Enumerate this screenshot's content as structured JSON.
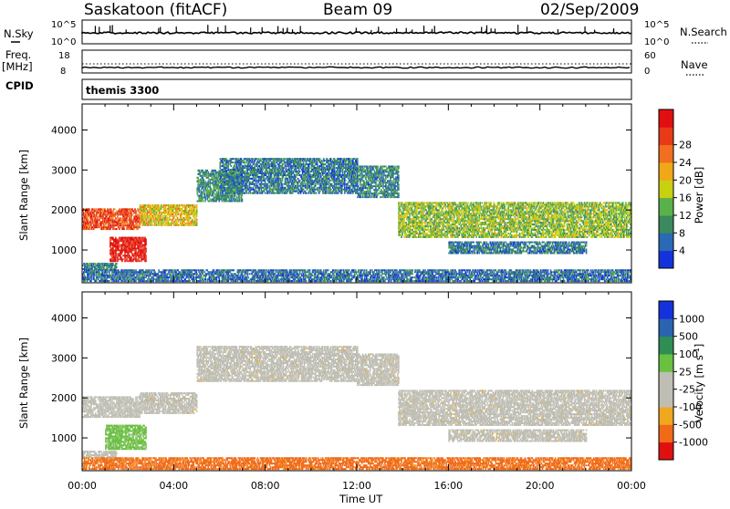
{
  "header": {
    "station": "Saskatoon (fitACF)",
    "beam": "Beam 09",
    "date": "02/Sep/2009"
  },
  "status_panel": {
    "left_top_label": "N.Sky",
    "left_top_ticks": [
      "10^5",
      "10^0"
    ],
    "right_top_label": "N.Search",
    "right_top_ticks": [
      "10^5",
      "10^0"
    ],
    "freq_label_1": "Freq.",
    "freq_label_2": "[MHz]",
    "freq_ticks": [
      "18",
      "8"
    ],
    "nave_label": "Nave",
    "nave_ticks": [
      "60",
      "0"
    ],
    "cpid_label": "CPID",
    "cpid_value": "themis 3300"
  },
  "colors": {
    "power_scale": [
      "#1432dc",
      "#2a6ab4",
      "#3a8a5e",
      "#5ab04a",
      "#c8d010",
      "#f0a818",
      "#f07020",
      "#e83a18",
      "#e01010"
    ],
    "velocity_scale": [
      "#e01010",
      "#f06a18",
      "#f0a820",
      "#bebeb4",
      "#bebeb4",
      "#6ac040",
      "#2e8e54",
      "#2a64b0",
      "#1432dc"
    ],
    "ground_scatter": "#bebeb4"
  },
  "chart_data": [
    {
      "type": "heatmap",
      "name": "power",
      "ylabel": "Slant Range [km]",
      "xlabel": "Time UT",
      "x_ticks": [
        "00:00",
        "04:00",
        "08:00",
        "12:00",
        "16:00",
        "20:00",
        "00:00"
      ],
      "xlim_hours": [
        0,
        24
      ],
      "y_ticks": [
        1000,
        2000,
        3000,
        4000
      ],
      "ylim": [
        180,
        4650
      ],
      "colorbar": {
        "label": "Power [dB]",
        "ticks": [
          4,
          8,
          12,
          16,
          20,
          24,
          28
        ],
        "range": [
          0,
          32
        ]
      },
      "echo_regions": [
        {
          "t": [
            0.0,
            2.5
          ],
          "range": [
            1500,
            2000
          ],
          "value": 26
        },
        {
          "t": [
            1.2,
            2.8
          ],
          "range": [
            700,
            1300
          ],
          "value": 30
        },
        {
          "t": [
            0.0,
            1.5
          ],
          "range": [
            500,
            650
          ],
          "value": 8
        },
        {
          "t": [
            2.5,
            5.0
          ],
          "range": [
            1600,
            2100
          ],
          "value": 18
        },
        {
          "t": [
            5.0,
            7.0
          ],
          "range": [
            2200,
            3000
          ],
          "value": 9
        },
        {
          "t": [
            6.0,
            12.0
          ],
          "range": [
            2400,
            3300
          ],
          "value": 7
        },
        {
          "t": [
            12.0,
            13.8
          ],
          "range": [
            2300,
            3100
          ],
          "value": 8
        },
        {
          "t": [
            13.8,
            24.0
          ],
          "range": [
            1300,
            2200
          ],
          "value": 14
        },
        {
          "t": [
            16.0,
            22.0
          ],
          "range": [
            900,
            1200
          ],
          "value": 7
        },
        {
          "t": [
            0.0,
            24.0
          ],
          "range": [
            200,
            500
          ],
          "value": 6
        }
      ]
    },
    {
      "type": "heatmap",
      "name": "velocity",
      "ylabel": "Slant Range [km]",
      "xlabel": "Time UT",
      "x_ticks": [
        "00:00",
        "04:00",
        "08:00",
        "12:00",
        "16:00",
        "20:00",
        "00:00"
      ],
      "xlim_hours": [
        0,
        24
      ],
      "y_ticks": [
        1000,
        2000,
        3000,
        4000
      ],
      "ylim": [
        180,
        4650
      ],
      "colorbar": {
        "label": "Velocity [m s",
        "label_sup": "-1",
        "label_end": "]",
        "ticks": [
          "1000",
          "500",
          "100",
          "25",
          "-25",
          "-100",
          "-500",
          "-1000"
        ]
      },
      "echo_regions": [
        {
          "t": [
            0.0,
            2.5
          ],
          "range": [
            1500,
            2000
          ],
          "value": 40
        },
        {
          "t": [
            1.0,
            2.8
          ],
          "range": [
            700,
            1300
          ],
          "value": 150
        },
        {
          "t": [
            0.0,
            1.5
          ],
          "range": [
            500,
            650
          ],
          "value": 0
        },
        {
          "t": [
            2.5,
            5.0
          ],
          "range": [
            1600,
            2100
          ],
          "value": 0
        },
        {
          "t": [
            5.0,
            12.0
          ],
          "range": [
            2400,
            3300
          ],
          "value": 0
        },
        {
          "t": [
            12.0,
            13.8
          ],
          "range": [
            2300,
            3100
          ],
          "value": 0
        },
        {
          "t": [
            13.8,
            24.0
          ],
          "range": [
            1300,
            2200
          ],
          "value": 0
        },
        {
          "t": [
            16.0,
            22.0
          ],
          "range": [
            900,
            1200
          ],
          "value": 0
        },
        {
          "t": [
            0.0,
            24.0
          ],
          "range": [
            200,
            500
          ],
          "value": -150
        }
      ]
    }
  ]
}
